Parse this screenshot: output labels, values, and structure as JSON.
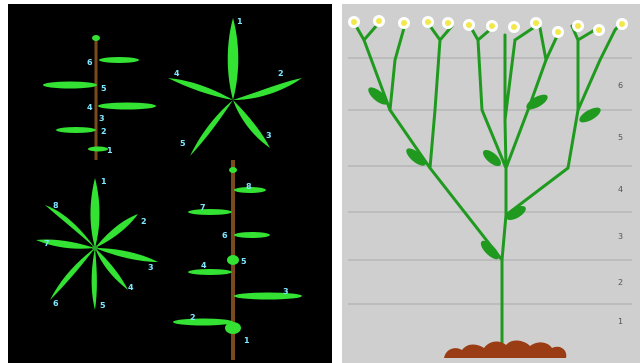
{
  "panels": {
    "left": {
      "background": "#000000",
      "leaf_color": "#33e233",
      "stem_color": "#7a4a1e",
      "label_color": "#7fe6ff",
      "alternate_plant": {
        "labels": [
          "6",
          "5",
          "4",
          "3",
          "2",
          "1"
        ]
      },
      "whorl_plant_5": {
        "labels": [
          "1",
          "2",
          "3",
          "4",
          "5"
        ]
      },
      "whorl_plant_8": {
        "labels": [
          "1",
          "2",
          "3",
          "4",
          "5",
          "6",
          "7",
          "8"
        ]
      },
      "opposite_plant": {
        "labels": [
          "1",
          "2",
          "3",
          "4",
          "5",
          "6",
          "7",
          "8"
        ]
      }
    },
    "right": {
      "background": "#cfcfcf",
      "stem_color": "#1f9a1f",
      "root_color": "#9a3c14",
      "flower_petal_color": "#ffffff",
      "flower_center_color": "#f2e84a",
      "level_labels": [
        "6",
        "5",
        "4",
        "3",
        "2",
        "1"
      ]
    }
  }
}
